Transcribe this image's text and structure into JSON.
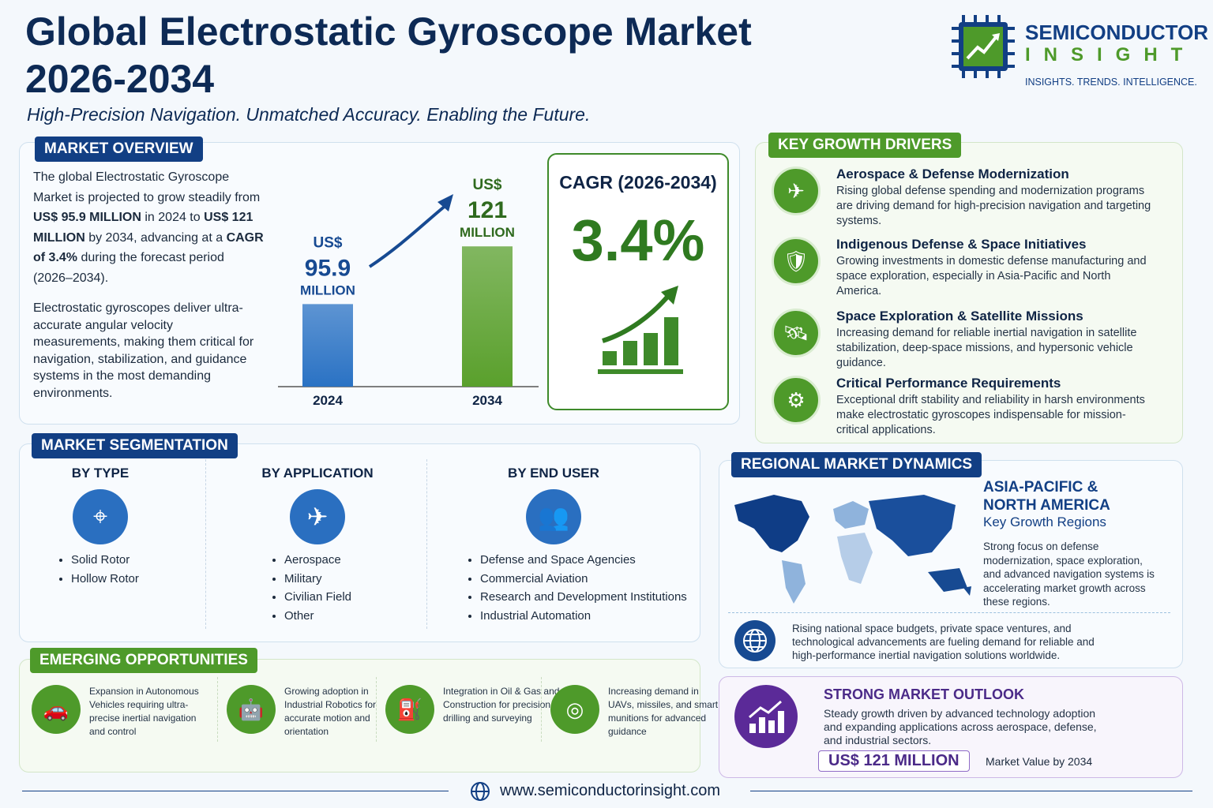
{
  "header": {
    "title_line1": "Global Electrostatic Gyroscope Market",
    "title_line2": "2026-2034",
    "subtitle": "High-Precision Navigation. Unmatched Accuracy. Enabling the Future."
  },
  "logo": {
    "name": "SEMICONDUCTOR",
    "name2": "INSIGHT",
    "tagline": "INSIGHTS. TRENDS. INTELLIGENCE."
  },
  "overview": {
    "tag": "MARKET OVERVIEW",
    "paragraph1": [
      "The global Electrostatic Gyroscope Market is projected to grow steadily from ",
      "US$ 95.9 MILLION",
      " in 2024 to ",
      "US$ 121 MILLION",
      " by 2034, advancing at a ",
      "CAGR of 3.4%",
      " during the forecast period (2026–2034)."
    ],
    "paragraph2": "Electrostatic gyroscopes deliver ultra-accurate angular velocity measurements, making them critical for navigation, stabilization, and guidance systems in the most demanding environments."
  },
  "chart_data": {
    "type": "bar",
    "categories": [
      "2024",
      "2034"
    ],
    "values": [
      95.9,
      121
    ],
    "value_prefix": "US$",
    "value_unit": "MILLION",
    "ylim": [
      60,
      130
    ],
    "colors": [
      "#2a72c4",
      "#5aa02c"
    ]
  },
  "cagr": {
    "label": "CAGR (2026-2034)",
    "value": "3.4%"
  },
  "drivers": {
    "tag": "KEY GROWTH DRIVERS",
    "items": [
      {
        "title": "Aerospace & Defense Modernization",
        "text": "Rising global defense spending and modernization programs are driving demand for high-precision navigation and targeting systems."
      },
      {
        "title": "Indigenous Defense & Space Initiatives",
        "text": "Growing investments in domestic defense manufacturing and space exploration, especially in Asia-Pacific and North America."
      },
      {
        "title": "Space Exploration & Satellite Missions",
        "text": "Increasing demand for reliable inertial navigation in satellite stabilization, deep-space missions, and hypersonic vehicle guidance."
      },
      {
        "title": "Critical Performance Requirements",
        "text": "Exceptional drift stability and reliability in harsh environments make electrostatic gyroscopes indispensable for mission-critical applications."
      }
    ]
  },
  "segmentation": {
    "tag": "MARKET SEGMENTATION",
    "columns": [
      {
        "title": "BY TYPE",
        "items": [
          "Solid Rotor",
          "Hollow Rotor"
        ]
      },
      {
        "title": "BY APPLICATION",
        "items": [
          "Aerospace",
          "Military",
          "Civilian Field",
          "Other"
        ]
      },
      {
        "title": "BY END USER",
        "items": [
          "Defense and Space Agencies",
          "Commercial Aviation",
          "Research and Development Institutions",
          "Industrial Automation"
        ]
      }
    ]
  },
  "opportunities": {
    "tag": "EMERGING OPPORTUNITIES",
    "items": [
      "Expansion in Autonomous Vehicles requiring ultra-precise inertial navigation and control",
      "Growing adoption in Industrial Robotics for accurate motion and orientation",
      "Integration in Oil & Gas and Construction for precision drilling and surveying",
      "Increasing demand in UAVs, missiles, and smart munitions for advanced guidance"
    ]
  },
  "regional": {
    "tag": "REGIONAL MARKET DYNAMICS",
    "region_line1": "ASIA-PACIFIC &",
    "region_line2": "NORTH AMERICA",
    "region_sub": "Key Growth Regions",
    "text": "Strong focus on defense modernization, space exploration, and advanced navigation systems is accelerating market growth across these regions.",
    "footer_text": "Rising national space budgets, private space ventures, and technological advancements are fueling demand for reliable and high-performance inertial navigation solutions worldwide."
  },
  "outlook": {
    "title": "STRONG MARKET OUTLOOK",
    "text": "Steady growth driven by advanced technology adoption and expanding applications across aerospace, defense, and industrial sectors.",
    "value": "US$ 121 MILLION",
    "value_caption": "Market Value by 2034"
  },
  "footer": {
    "url": "www.semiconductorinsight.com"
  }
}
